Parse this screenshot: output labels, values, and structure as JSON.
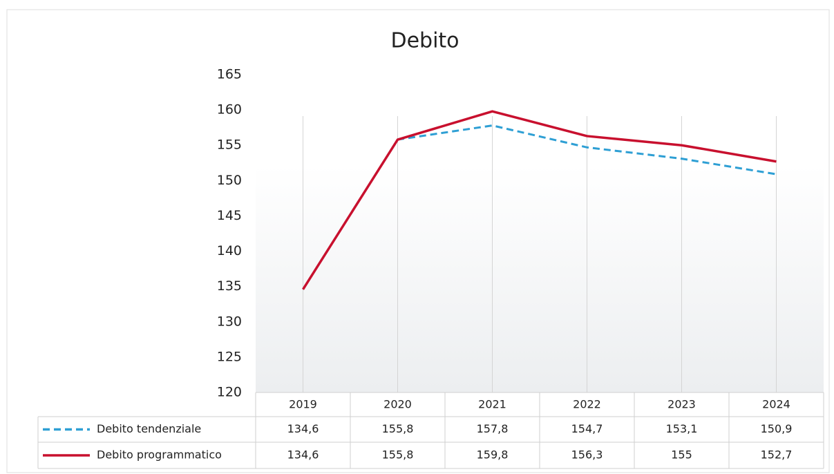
{
  "chart_data": {
    "type": "line",
    "title": "Debito",
    "categories": [
      "2019",
      "2020",
      "2021",
      "2022",
      "2023",
      "2024"
    ],
    "series": [
      {
        "name": "Debito tendenziale",
        "color": "#2e9fd4",
        "dashed": true,
        "values": [
          134.6,
          155.8,
          157.8,
          154.7,
          153.1,
          150.9
        ],
        "value_labels": [
          "134,6",
          "155,8",
          "157,8",
          "154,7",
          "153,1",
          "150,9"
        ]
      },
      {
        "name": "Debito programmatico",
        "color": "#c8102e",
        "dashed": false,
        "values": [
          134.6,
          155.8,
          159.8,
          156.3,
          155,
          152.7
        ],
        "value_labels": [
          "134,6",
          "155,8",
          "159,8",
          "156,3",
          "155",
          "152,7"
        ]
      }
    ],
    "ylim": [
      120,
      165
    ],
    "yticks": [
      120,
      125,
      130,
      135,
      140,
      145,
      150,
      155,
      160,
      165
    ],
    "data_table": true
  }
}
